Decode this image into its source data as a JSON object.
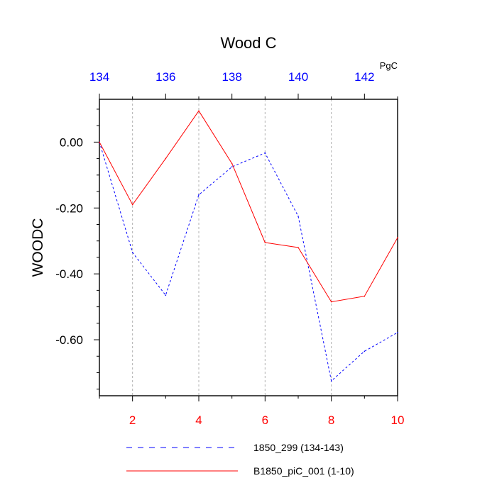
{
  "chart_data": {
    "type": "line",
    "title": "Wood C",
    "units_label": "PgC",
    "ylabel": "WOODC",
    "xlabel": "",
    "x_bottom": {
      "range": [
        1,
        10
      ],
      "ticks": [
        2,
        4,
        6,
        8,
        10
      ],
      "color": "#ff0000"
    },
    "x_top": {
      "range": [
        134,
        143
      ],
      "ticks": [
        134,
        136,
        138,
        140,
        142
      ],
      "color": "#0000ff"
    },
    "y": {
      "range": [
        -0.77,
        0.13
      ],
      "ticks": [
        0.0,
        -0.2,
        -0.4,
        -0.6
      ],
      "tick_labels": [
        "0.00",
        "-0.20",
        "-0.40",
        "-0.60"
      ]
    },
    "grid": "vertical dotted at bottom-axis major ticks",
    "legend_position": "below plot",
    "series": [
      {
        "name": "1850_299 (134-143)",
        "color": "#0000ff",
        "dash": "dashed",
        "x": [
          1,
          2,
          3,
          4,
          5,
          6,
          7,
          8,
          9,
          10
        ],
        "values": [
          0.0,
          -0.335,
          -0.465,
          -0.16,
          -0.075,
          -0.033,
          -0.225,
          -0.725,
          -0.635,
          -0.578
        ]
      },
      {
        "name": "B1850_piC_001 (1-10)",
        "color": "#ff0000",
        "dash": "solid",
        "x": [
          1,
          2,
          3,
          4,
          5,
          6,
          7,
          8,
          9,
          10
        ],
        "values": [
          0.0,
          -0.19,
          -0.05,
          0.095,
          -0.065,
          -0.305,
          -0.32,
          -0.485,
          -0.468,
          -0.29
        ]
      }
    ]
  }
}
